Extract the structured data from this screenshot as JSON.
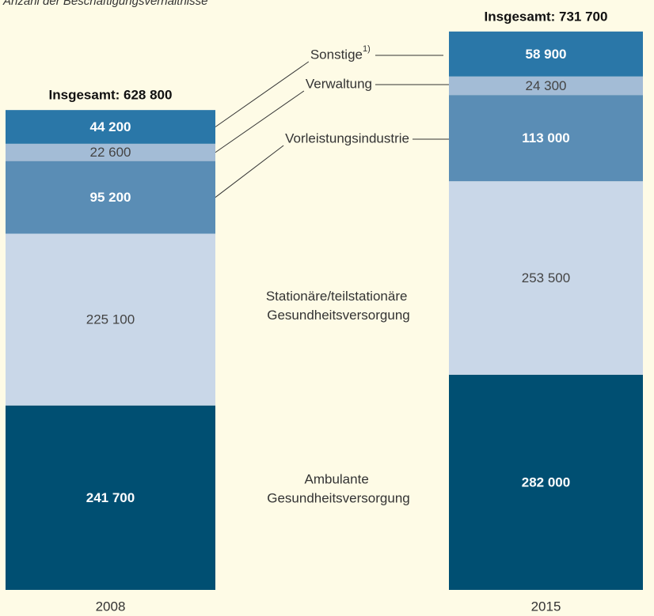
{
  "chart_data": {
    "type": "stacked-bar",
    "subtitle": "Anzahl der Beschäftigungsverhältnisse",
    "categories": [
      "2008",
      "2015"
    ],
    "total_labels": [
      "Insgesamt: 628 800",
      "Insgesamt: 731 700"
    ],
    "ylim": [
      0,
      773000
    ],
    "series": [
      {
        "name": "Ambulante Gesundheitsversorgung",
        "color": "#004f72",
        "label_color": "#ffffff",
        "values": [
          241700,
          282000
        ],
        "value_labels": [
          "241 700",
          "282 000"
        ]
      },
      {
        "name": "Stationäre/teilstationäre Gesundheitsversorgung",
        "color": "#c9d7e8",
        "label_color": "#444444",
        "values": [
          225100,
          253500
        ],
        "value_labels": [
          "225 100",
          "253 500"
        ]
      },
      {
        "name": "Vorleistungsindustrie",
        "color": "#5a8db5",
        "label_color": "#ffffff",
        "values": [
          95200,
          113000
        ],
        "value_labels": [
          "95 200",
          "113 000"
        ]
      },
      {
        "name": "Verwaltung",
        "color": "#a3bcd6",
        "label_color": "#444444",
        "values": [
          22600,
          24300
        ],
        "value_labels": [
          "22 600",
          "24 300"
        ]
      },
      {
        "name": "Sonstige",
        "name_note": "1)",
        "color": "#2a77a8",
        "label_color": "#ffffff",
        "values": [
          44200,
          58900
        ],
        "value_labels": [
          "44 200",
          "58 900"
        ]
      }
    ]
  }
}
